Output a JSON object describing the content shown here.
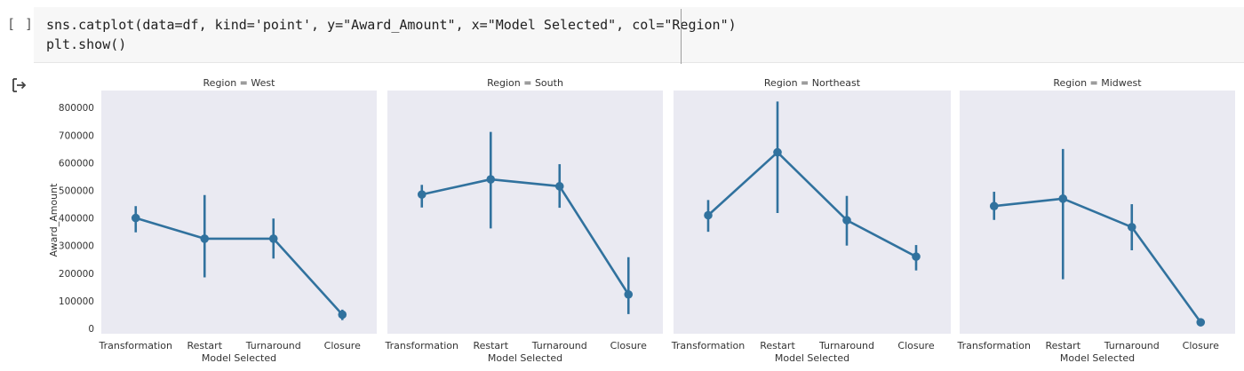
{
  "cell": {
    "bracket": "[ ]",
    "code_lines": [
      "sns.catplot(data=df, kind='point', y=\"Award_Amount\", x=\"Model Selected\", col=\"Region\")",
      "plt.show()"
    ],
    "output_icon": "output-arrow-icon"
  },
  "colors": {
    "panel_bg": "#eaeaf2",
    "series": "#31729e",
    "text": "#333333"
  },
  "chart_data": {
    "type": "line",
    "subtype": "point-plot-with-error-bars",
    "facets": [
      "Region = West",
      "Region = South",
      "Region = Northeast",
      "Region = Midwest"
    ],
    "categories": [
      "Transformation",
      "Restart",
      "Turnaround",
      "Closure"
    ],
    "xlabel": "Model Selected",
    "ylabel": "Award_Amount",
    "ylim": [
      0,
      800000
    ],
    "yticks": [
      0,
      100000,
      200000,
      300000,
      400000,
      500000,
      600000,
      700000,
      800000
    ],
    "grid": false,
    "series": [
      {
        "facet": "Region = West",
        "values": [
          400000,
          325000,
          325000,
          50000
        ],
        "ci_low": [
          348000,
          185000,
          253000,
          30000
        ],
        "ci_high": [
          443000,
          483000,
          398000,
          68000
        ]
      },
      {
        "facet": "Region = South",
        "values": [
          485000,
          540000,
          515000,
          123000
        ],
        "ci_low": [
          438000,
          362000,
          437000,
          52000
        ],
        "ci_high": [
          520000,
          712000,
          595000,
          258000
        ]
      },
      {
        "facet": "Region = Northeast",
        "values": [
          410000,
          638000,
          392000,
          260000
        ],
        "ci_low": [
          350000,
          418000,
          300000,
          210000
        ],
        "ci_high": [
          465000,
          822000,
          480000,
          302000
        ]
      },
      {
        "facet": "Region = Midwest",
        "values": [
          443000,
          470000,
          367000,
          22000
        ],
        "ci_low": [
          393000,
          178000,
          283000,
          15000
        ],
        "ci_high": [
          495000,
          650000,
          450000,
          30000
        ]
      }
    ]
  }
}
